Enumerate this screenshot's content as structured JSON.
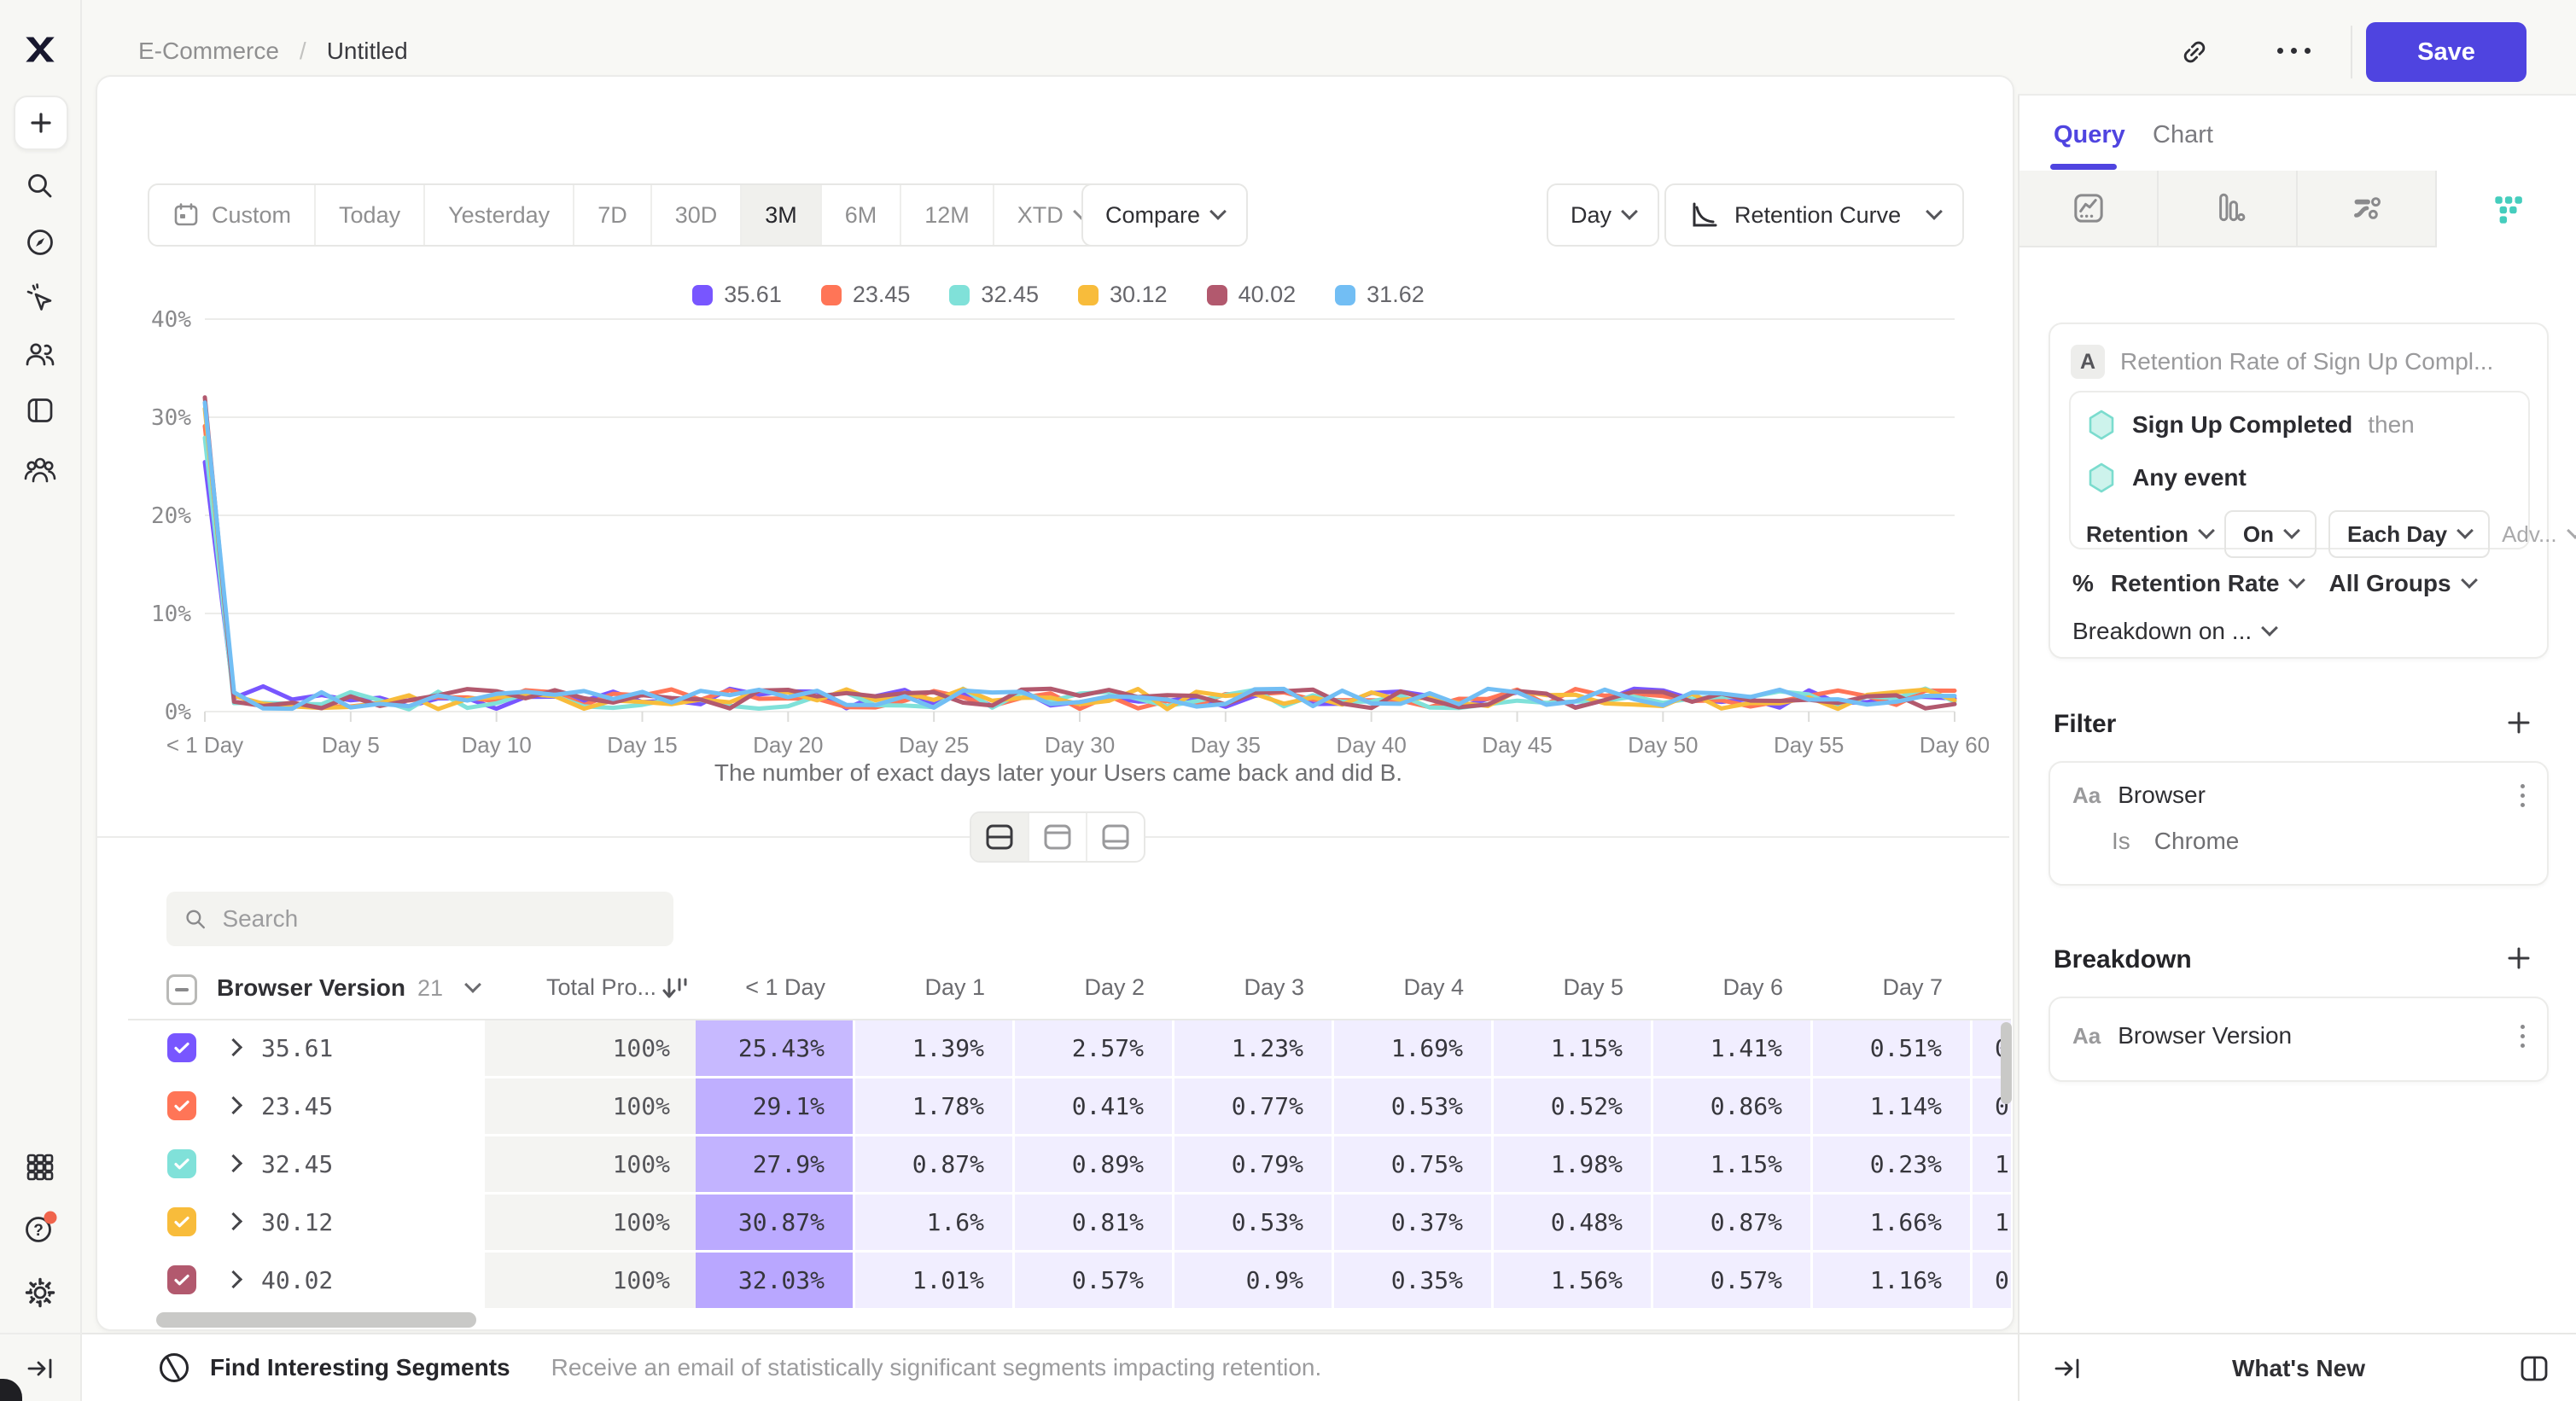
{
  "topbar": {
    "breadcrumb_parent": "E-Commerce",
    "breadcrumb_sep": "/",
    "breadcrumb_current": "Untitled",
    "save_label": "Save"
  },
  "toolbar": {
    "date_ranges": [
      "Custom",
      "Today",
      "Yesterday",
      "7D",
      "30D",
      "3M",
      "6M",
      "12M",
      "XTD"
    ],
    "selected_range": "3M",
    "compare_label": "Compare",
    "granularity_label": "Day",
    "chart_type_label": "Retention Curve"
  },
  "chart_data": {
    "type": "line",
    "x": {
      "min": 0,
      "max": 60,
      "tick_step": 5,
      "tick_labels": [
        "< 1 Day",
        "Day 5",
        "Day 10",
        "Day 15",
        "Day 20",
        "Day 25",
        "Day 30",
        "Day 35",
        "Day 40",
        "Day 45",
        "Day 50",
        "Day 55",
        "Day 60"
      ]
    },
    "y": {
      "min": 0,
      "max": 40,
      "tick_labels": [
        "0%",
        "10%",
        "20%",
        "30%",
        "40%"
      ],
      "unit": "percent"
    },
    "grid": true,
    "legend_position": "top-center",
    "series": [
      {
        "name": "35.61",
        "color": "#7856FF",
        "known_values": {
          "0": 25.43,
          "1": 1.39,
          "2": 2.57,
          "3": 1.23,
          "4": 1.69,
          "5": 1.15,
          "6": 1.41,
          "7": 0.51
        }
      },
      {
        "name": "23.45",
        "color": "#FF7557",
        "known_values": {
          "0": 29.1,
          "1": 1.78,
          "2": 0.41,
          "3": 0.77,
          "4": 0.53,
          "5": 0.52,
          "6": 0.86,
          "7": 1.14
        }
      },
      {
        "name": "32.45",
        "color": "#80E1D9",
        "known_values": {
          "0": 27.9,
          "1": 0.87,
          "2": 0.89,
          "3": 0.79,
          "4": 0.75,
          "5": 1.98,
          "6": 1.15,
          "7": 0.23
        }
      },
      {
        "name": "30.12",
        "color": "#F8BC3B",
        "known_values": {
          "0": 30.87,
          "1": 1.6,
          "2": 0.81,
          "3": 0.53,
          "4": 0.37,
          "5": 0.48,
          "6": 0.87,
          "7": 1.66
        }
      },
      {
        "name": "40.02",
        "color": "#B2596E",
        "known_values": {
          "0": 32.03,
          "1": 1.01,
          "2": 0.57,
          "3": 0.9,
          "4": 0.35,
          "5": 1.56,
          "6": 0.57,
          "7": 1.16
        }
      },
      {
        "name": "31.62",
        "color": "#72BEF4",
        "known_values": {
          "0": 31.5
        }
      }
    ],
    "unlabeled_value_range": [
      0.25,
      2.35
    ],
    "caption": "The number of exact days later your Users came back and did B."
  },
  "view_toggle": {
    "options": [
      "split-view",
      "chart-only",
      "table-only"
    ],
    "selected": "split-view"
  },
  "search": {
    "placeholder": "Search"
  },
  "table": {
    "group_label": "Browser Version",
    "group_count": "21",
    "total_column": "Total Pro...",
    "day_columns": [
      "< 1 Day",
      "Day 1",
      "Day 2",
      "Day 3",
      "Day 4",
      "Day 5",
      "Day 6",
      "Day 7"
    ],
    "rows": [
      {
        "name": "35.61",
        "color": "#7856FF",
        "total": "100%",
        "values": [
          "25.43%",
          "1.39%",
          "2.57%",
          "1.23%",
          "1.69%",
          "1.15%",
          "1.41%",
          "0.51%"
        ],
        "clipped_next": "0"
      },
      {
        "name": "23.45",
        "color": "#FF7557",
        "total": "100%",
        "values": [
          "29.1%",
          "1.78%",
          "0.41%",
          "0.77%",
          "0.53%",
          "0.52%",
          "0.86%",
          "1.14%"
        ],
        "clipped_next": "0"
      },
      {
        "name": "32.45",
        "color": "#80E1D9",
        "total": "100%",
        "values": [
          "27.9%",
          "0.87%",
          "0.89%",
          "0.79%",
          "0.75%",
          "1.98%",
          "1.15%",
          "0.23%"
        ],
        "clipped_next": "1"
      },
      {
        "name": "30.12",
        "color": "#F8BC3B",
        "total": "100%",
        "values": [
          "30.87%",
          "1.6%",
          "0.81%",
          "0.53%",
          "0.37%",
          "0.48%",
          "0.87%",
          "1.66%"
        ],
        "clipped_next": "1"
      },
      {
        "name": "40.02",
        "color": "#B2596E",
        "total": "100%",
        "values": [
          "32.03%",
          "1.01%",
          "0.57%",
          "0.9%",
          "0.35%",
          "1.56%",
          "0.57%",
          "1.16%"
        ],
        "clipped_next": "0"
      }
    ]
  },
  "segments_bar": {
    "title": "Find Interesting Segments",
    "description": "Receive an email of statistically significant segments impacting retention."
  },
  "panel": {
    "tabs": [
      {
        "label": "Query",
        "active": true
      },
      {
        "label": "Chart",
        "active": false
      }
    ],
    "report_types": [
      "insights",
      "funnels",
      "flows",
      "retention"
    ],
    "selected_report": "retention",
    "query": {
      "step_badge": "A",
      "step_title": "Retention Rate of Sign Up Compl...",
      "first_event": "Sign Up Completed",
      "then_label": "then",
      "return_event": "Any event",
      "retention_label": "Retention",
      "on_label": "On",
      "interval_label": "Each Day",
      "advanced_label": "Adv...",
      "measure_symbol": "%",
      "measure_label": "Retention Rate",
      "groups_label": "All Groups",
      "breakdown_on_label": "Breakdown on ..."
    },
    "filter": {
      "heading": "Filter",
      "type_badge": "Aa",
      "property": "Browser",
      "operator": "Is",
      "value": "Chrome"
    },
    "breakdown": {
      "heading": "Breakdown",
      "type_badge": "Aa",
      "property": "Browser Version"
    },
    "footer_label": "What's New"
  },
  "colors": {
    "accent": "#4F44E0",
    "teal": "#45CDBD",
    "notification": "#F0644C",
    "cell_purple": "#7856FF"
  }
}
